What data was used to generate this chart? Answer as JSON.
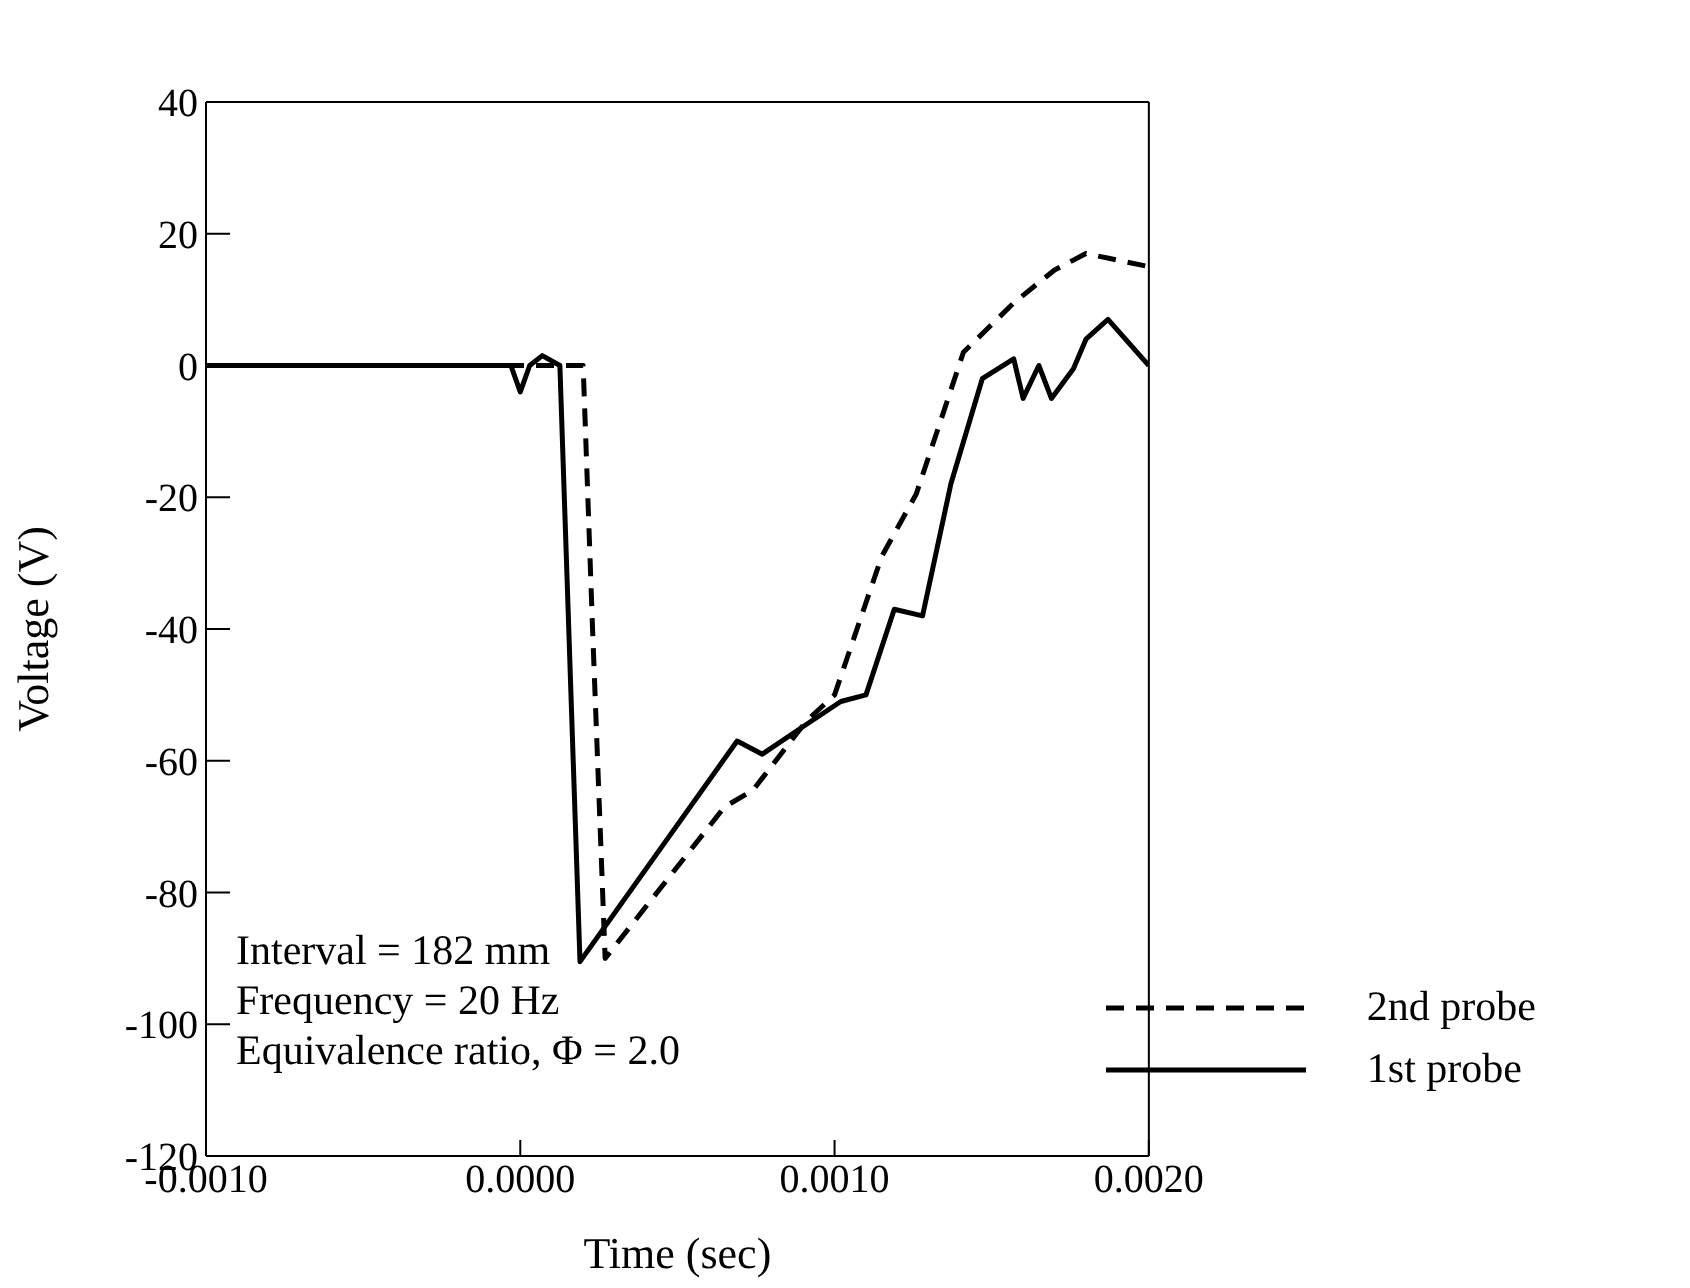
{
  "chart_data": {
    "type": "line",
    "xlabel": "Time (sec)",
    "ylabel": "Voltage (V)",
    "xlim": [
      -0.001,
      0.002
    ],
    "xticks": [
      {
        "value": -0.001,
        "label": "-0.0010"
      },
      {
        "value": 0,
        "label": "0.0000"
      },
      {
        "value": 0.001,
        "label": "0.0010"
      },
      {
        "value": 0.002,
        "label": "0.0020"
      }
    ],
    "ylim": [
      -120,
      40
    ],
    "yticks": [
      -120,
      -100,
      -80,
      -60,
      -40,
      -20,
      0,
      20,
      40
    ],
    "legend": "bottom right",
    "marker": "none",
    "annotations": [
      "Interval = 182 mm",
      "Frequency = 20 Hz",
      "Equivalence ratio, Φ = 2.0"
    ],
    "series": [
      {
        "name": "2nd probe",
        "color": "#000000",
        "line_style": "dashed",
        "x": [
          -0.001,
          0.0,
          0.0002,
          0.00023,
          0.00027,
          0.00065,
          0.00074,
          0.00091,
          0.001,
          0.00115,
          0.00126,
          0.00141,
          0.00157,
          0.0017,
          0.0018,
          0.002
        ],
        "values": [
          0,
          0,
          0,
          -40,
          -90,
          -67,
          -64.5,
          -54,
          -50,
          -29,
          -19.5,
          2,
          9.5,
          14.5,
          17,
          15
        ]
      },
      {
        "name": "1st probe",
        "color": "#000000",
        "line_style": "solid",
        "x": [
          -0.001,
          -3e-05,
          0.0,
          3e-05,
          7e-05,
          0.000126,
          0.00019,
          0.00069,
          0.00077,
          0.00091,
          0.00102,
          0.0011,
          0.00119,
          0.00128,
          0.00137,
          0.00147,
          0.00157,
          0.0016,
          0.00165,
          0.00169,
          0.00176,
          0.0018,
          0.00187,
          0.002
        ],
        "values": [
          0,
          0,
          -4,
          0,
          1.5,
          0,
          -90.5,
          -57,
          -59,
          -54.5,
          -51,
          -50,
          -37,
          -38,
          -18,
          -2,
          1,
          -5,
          0,
          -5,
          -0.5,
          4,
          7,
          0
        ]
      }
    ]
  }
}
